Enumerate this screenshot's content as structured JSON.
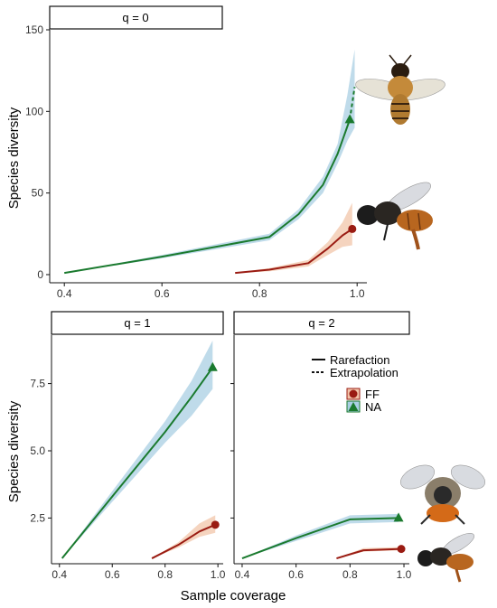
{
  "chart_data": [
    {
      "type": "line",
      "panel": "q = 0",
      "xlim": [
        0.37,
        1.02
      ],
      "ylim": [
        -5,
        150
      ],
      "xticks": [
        0.4,
        0.6,
        0.8,
        1.0
      ],
      "xtick_labels": [
        "0.4",
        "0.6",
        "0.8",
        "1.0"
      ],
      "yticks": [
        0,
        50,
        100,
        150
      ],
      "ytick_labels": [
        "0",
        "50",
        "100",
        "150"
      ],
      "ylabel": "Species diversity",
      "series": [
        {
          "name": "NA",
          "color": "#1a7a2e",
          "ribbon_color": "#a9cfe3",
          "marker": "triangle",
          "rarefaction": [
            [
              0.4,
              1
            ],
            [
              0.6,
              11
            ],
            [
              0.82,
              23
            ],
            [
              0.88,
              37
            ],
            [
              0.93,
              55
            ],
            [
              0.96,
              74
            ],
            [
              0.985,
              95
            ]
          ],
          "extrapolation": [
            [
              0.985,
              95
            ],
            [
              0.99,
              105
            ],
            [
              0.995,
              115
            ]
          ],
          "ribbon": [
            [
              0.4,
              1,
              1
            ],
            [
              0.6,
              10,
              12
            ],
            [
              0.82,
              21,
              25
            ],
            [
              0.88,
              34,
              40
            ],
            [
              0.93,
              50,
              60
            ],
            [
              0.96,
              68,
              80
            ],
            [
              0.98,
              82,
              110
            ],
            [
              0.995,
              90,
              138
            ]
          ],
          "observed": [
            0.985,
            95
          ]
        },
        {
          "name": "FF",
          "color": "#9a1b12",
          "ribbon_color": "#f2c5aa",
          "marker": "circle",
          "rarefaction": [
            [
              0.75,
              1
            ],
            [
              0.82,
              3
            ],
            [
              0.9,
              7
            ],
            [
              0.94,
              16
            ],
            [
              0.97,
              24
            ],
            [
              0.99,
              28
            ]
          ],
          "extrapolation": [],
          "ribbon": [
            [
              0.75,
              1,
              1
            ],
            [
              0.82,
              2,
              4
            ],
            [
              0.9,
              5,
              9
            ],
            [
              0.94,
              12,
              20
            ],
            [
              0.97,
              17,
              32
            ],
            [
              0.99,
              18,
              44
            ]
          ],
          "observed": [
            0.99,
            28
          ]
        }
      ]
    },
    {
      "type": "line",
      "panel": "q = 1",
      "xlim": [
        0.37,
        1.02
      ],
      "ylim": [
        0.8,
        9.3
      ],
      "xticks": [
        0.4,
        0.6,
        0.8,
        1.0
      ],
      "xtick_labels": [
        "0.4",
        "0.6",
        "0.8",
        "1.0"
      ],
      "yticks": [
        2.5,
        5.0,
        7.5
      ],
      "ytick_labels": [
        "2.5",
        "5.0",
        "7.5"
      ],
      "ylabel": "Species diversity",
      "series": [
        {
          "name": "NA",
          "color": "#1a7a2e",
          "ribbon_color": "#a9cfe3",
          "marker": "triangle",
          "rarefaction": [
            [
              0.41,
              1
            ],
            [
              0.6,
              3.3
            ],
            [
              0.8,
              5.7
            ],
            [
              0.9,
              7.0
            ],
            [
              0.98,
              8.1
            ]
          ],
          "extrapolation": [],
          "ribbon": [
            [
              0.41,
              1,
              1
            ],
            [
              0.6,
              3.1,
              3.5
            ],
            [
              0.8,
              5.3,
              6.1
            ],
            [
              0.9,
              6.3,
              7.6
            ],
            [
              0.98,
              7.3,
              9.1
            ]
          ],
          "observed": [
            0.98,
            8.1
          ]
        },
        {
          "name": "FF",
          "color": "#9a1b12",
          "ribbon_color": "#f2c5aa",
          "marker": "circle",
          "rarefaction": [
            [
              0.75,
              1.0
            ],
            [
              0.85,
              1.5
            ],
            [
              0.93,
              2.0
            ],
            [
              0.99,
              2.25
            ]
          ],
          "extrapolation": [],
          "ribbon": [
            [
              0.75,
              1.0,
              1.0
            ],
            [
              0.85,
              1.4,
              1.6
            ],
            [
              0.93,
              1.8,
              2.3
            ],
            [
              0.99,
              1.95,
              2.6
            ]
          ],
          "observed": [
            0.99,
            2.25
          ]
        }
      ]
    },
    {
      "type": "line",
      "panel": "q = 2",
      "xlim": [
        0.37,
        1.02
      ],
      "ylim": [
        0.8,
        9.3
      ],
      "xticks": [
        0.4,
        0.6,
        0.8,
        1.0
      ],
      "xtick_labels": [
        "0.4",
        "0.6",
        "0.8",
        "1.0"
      ],
      "yticks": [
        2.5,
        5.0,
        7.5
      ],
      "ytick_labels": [],
      "ylabel": "",
      "series": [
        {
          "name": "NA",
          "color": "#1a7a2e",
          "ribbon_color": "#a9cfe3",
          "marker": "triangle",
          "rarefaction": [
            [
              0.4,
              1
            ],
            [
              0.6,
              1.75
            ],
            [
              0.8,
              2.45
            ],
            [
              0.98,
              2.5
            ]
          ],
          "extrapolation": [],
          "ribbon": [
            [
              0.4,
              1,
              1
            ],
            [
              0.6,
              1.65,
              1.85
            ],
            [
              0.8,
              2.3,
              2.6
            ],
            [
              0.98,
              2.35,
              2.65
            ]
          ],
          "observed": [
            0.98,
            2.5
          ]
        },
        {
          "name": "FF",
          "color": "#9a1b12",
          "ribbon_color": "#f2c5aa",
          "marker": "circle",
          "rarefaction": [
            [
              0.75,
              1.0
            ],
            [
              0.85,
              1.3
            ],
            [
              0.99,
              1.35
            ]
          ],
          "extrapolation": [],
          "ribbon": [
            [
              0.75,
              1.0,
              1.0
            ],
            [
              0.85,
              1.25,
              1.38
            ],
            [
              0.99,
              1.3,
              1.42
            ]
          ],
          "observed": [
            0.99,
            1.35
          ]
        }
      ]
    }
  ],
  "figure": {
    "xlabel": "Sample coverage",
    "legend": {
      "placement": "top-right of q = 2 panel",
      "linetype_items": [
        "Rarefaction",
        "Extrapolation"
      ],
      "group_items": [
        "FF",
        "NA"
      ]
    }
  }
}
